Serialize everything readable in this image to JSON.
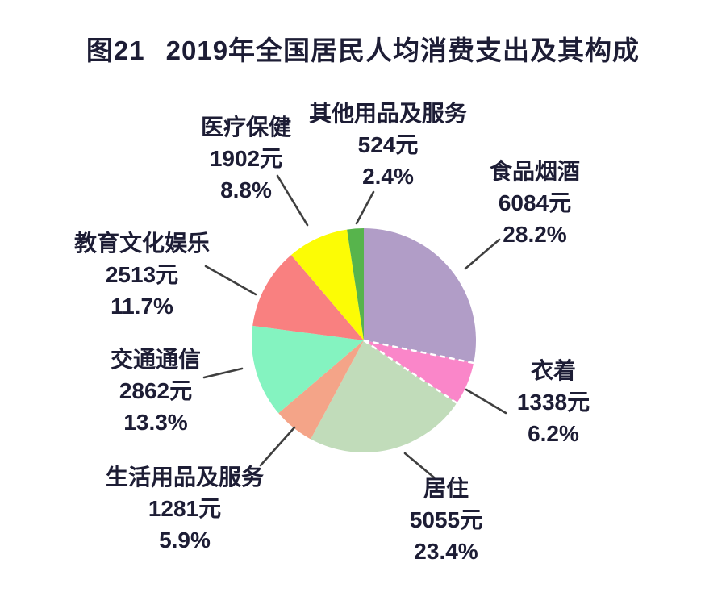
{
  "header": {
    "figure_no": "图21",
    "title": "2019年全国居民人均消费支出及其构成"
  },
  "colors": {
    "text": "#1d1d35",
    "leader_line": "#3f3f3f",
    "background": "#ffffff",
    "dashed_border": "#ffffff"
  },
  "chart_data": {
    "type": "pie",
    "title": "图21 2019年全国居民人均消费支出及其构成",
    "unit": "元",
    "direction": "clockwise",
    "start_angle_deg": 0,
    "legend": "none",
    "slices": [
      {
        "name": "食品烟酒",
        "amount_label": "6084元",
        "percent_label": "28.2%",
        "amount_yuan": 6084,
        "percent": 28.2,
        "color": "#b19dc7"
      },
      {
        "name": "衣着",
        "amount_label": "1338元",
        "percent_label": "6.2%",
        "amount_yuan": 1338,
        "percent": 6.2,
        "color": "#fa86c9",
        "border_style": "white-dashed"
      },
      {
        "name": "居住",
        "amount_label": "5055元",
        "percent_label": "23.4%",
        "amount_yuan": 5055,
        "percent": 23.4,
        "color": "#c1dcba"
      },
      {
        "name": "生活用品及服务",
        "amount_label": "1281元",
        "percent_label": "5.9%",
        "amount_yuan": 1281,
        "percent": 5.9,
        "color": "#f4a488"
      },
      {
        "name": "交通通信",
        "amount_label": "2862元",
        "percent_label": "13.3%",
        "amount_yuan": 2862,
        "percent": 13.3,
        "color": "#84f3c0"
      },
      {
        "name": "教育文化娱乐",
        "amount_label": "2513元",
        "percent_label": "11.7%",
        "amount_yuan": 2513,
        "percent": 11.7,
        "color": "#f98080"
      },
      {
        "name": "医疗保健",
        "amount_label": "1902元",
        "percent_label": "8.8%",
        "amount_yuan": 1902,
        "percent": 8.8,
        "color": "#fcfc05"
      },
      {
        "name": "其他用品及服务",
        "amount_label": "524元",
        "percent_label": "2.4%",
        "amount_yuan": 524,
        "percent": 2.4,
        "color": "#57b44c"
      }
    ]
  }
}
